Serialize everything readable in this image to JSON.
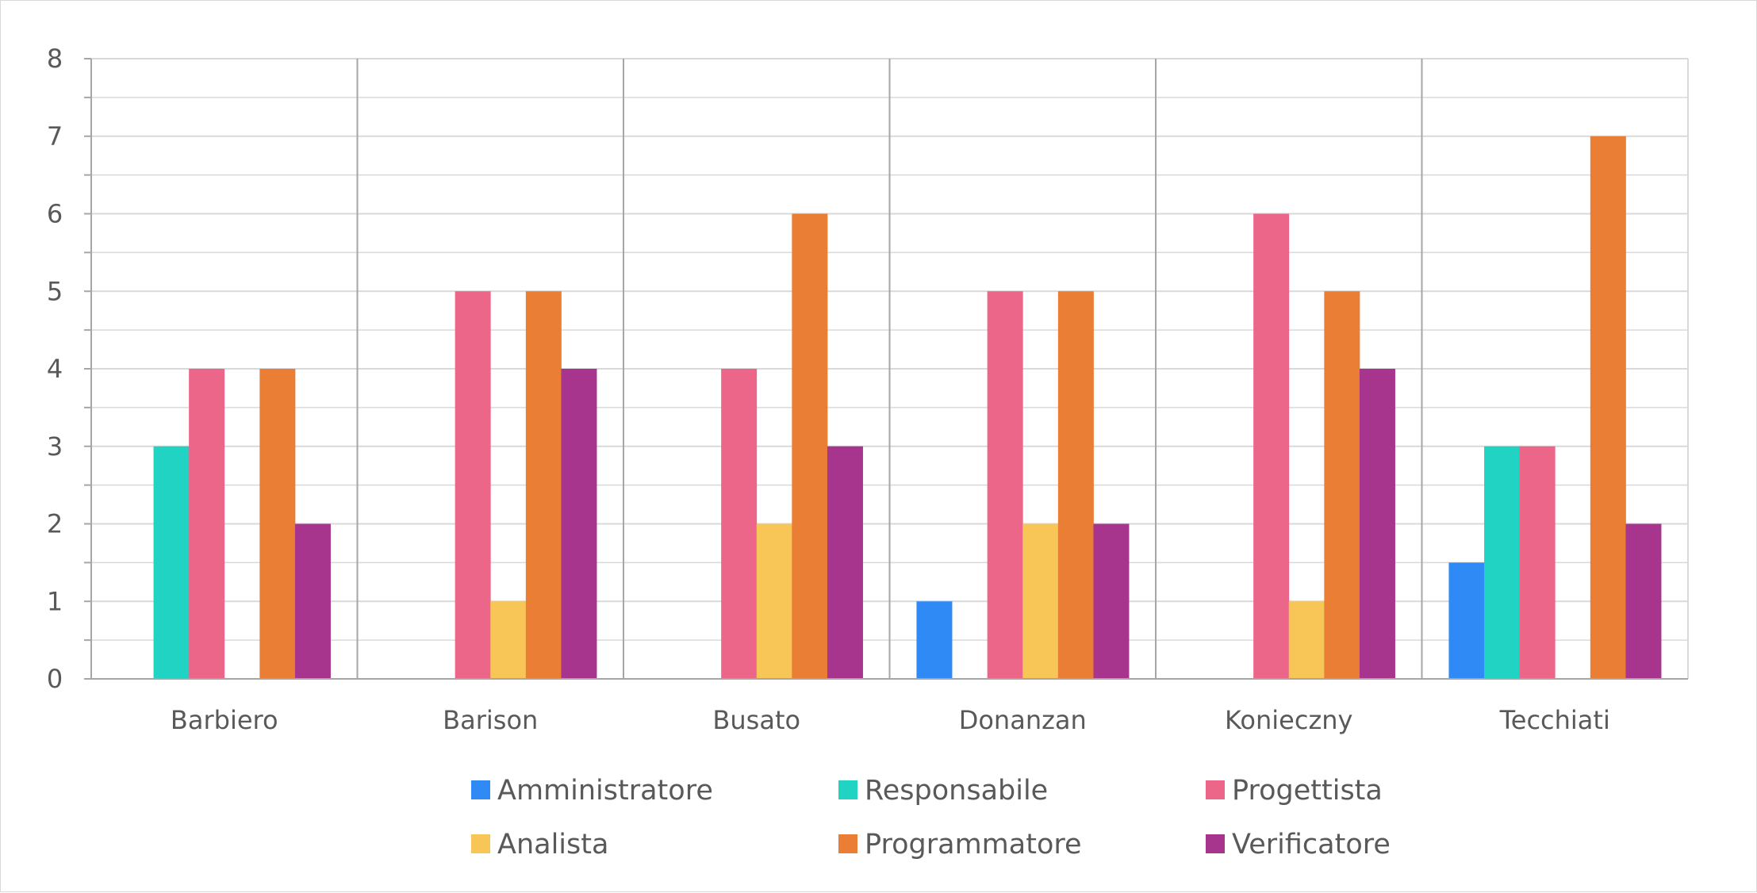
{
  "chart_data": {
    "type": "bar",
    "title": "",
    "xlabel": "",
    "ylabel": "",
    "ylim": [
      0,
      8
    ],
    "yticks": [
      "0",
      "1",
      "2",
      "3",
      "4",
      "5",
      "6",
      "7",
      "8"
    ],
    "minor_grid_step": 0.5,
    "grid": true,
    "legend_position": "bottom",
    "categories": [
      "Barbiero",
      "Barison",
      "Busato",
      "Donanzan",
      "Konieczny",
      "Tecchiati"
    ],
    "series": [
      {
        "name": "Amministratore",
        "color": "#2f8af5",
        "values": [
          0,
          0,
          0,
          1,
          0,
          1.5
        ]
      },
      {
        "name": "Responsabile",
        "color": "#20d3c2",
        "values": [
          3,
          0,
          0,
          0,
          0,
          3
        ]
      },
      {
        "name": "Progettista",
        "color": "#eb6689",
        "values": [
          4,
          5,
          4,
          5,
          6,
          3
        ]
      },
      {
        "name": "Analista",
        "color": "#f7c657",
        "values": [
          0,
          1,
          2,
          2,
          1,
          0
        ]
      },
      {
        "name": "Programmatore",
        "color": "#ea7e34",
        "values": [
          4,
          5,
          6,
          5,
          5,
          7
        ]
      },
      {
        "name": "Verificatore",
        "color": "#a8358d",
        "values": [
          2,
          4,
          3,
          2,
          4,
          2
        ]
      }
    ]
  }
}
